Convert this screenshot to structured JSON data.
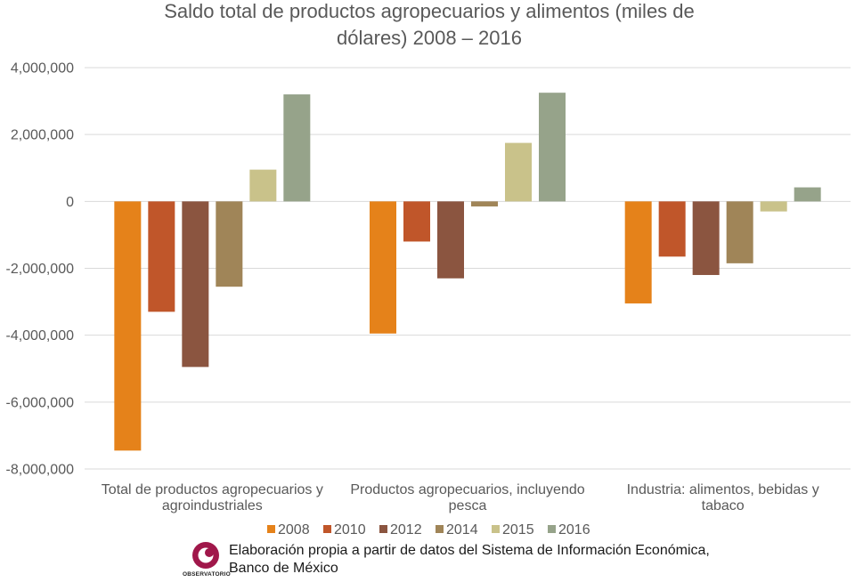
{
  "chart_data": {
    "type": "bar",
    "title": "Saldo total de productos agropecuarios y alimentos (miles de dólares) 2008 – 2016",
    "title_lines": [
      "Saldo total de productos agropecuarios y alimentos (miles de",
      "dólares) 2008 – 2016"
    ],
    "categories": [
      [
        "Total de productos agropecuarios y",
        "agroindustriales"
      ],
      [
        "Productos agropecuarios, incluyendo",
        "pesca"
      ],
      [
        "Industria: alimentos, bebidas y",
        "tabaco"
      ]
    ],
    "series": [
      {
        "name": "2008",
        "color": "#E5821A",
        "values": [
          -7450000,
          -3950000,
          -3050000
        ]
      },
      {
        "name": "2010",
        "color": "#C0562A",
        "values": [
          -3300000,
          -1200000,
          -1650000
        ]
      },
      {
        "name": "2012",
        "color": "#8B5540",
        "values": [
          -4950000,
          -2300000,
          -2200000
        ]
      },
      {
        "name": "2014",
        "color": "#A08558",
        "values": [
          -2550000,
          -150000,
          -1850000
        ]
      },
      {
        "name": "2015",
        "color": "#C9C28A",
        "values": [
          950000,
          1750000,
          -300000
        ]
      },
      {
        "name": "2016",
        "color": "#96A38A",
        "values": [
          3200000,
          3250000,
          420000
        ]
      }
    ],
    "yticks": [
      "4,000,000",
      "2,000,000",
      "0",
      "-2,000,000",
      "-4,000,000",
      "-6,000,000",
      "-8,000,000"
    ],
    "ytick_values": [
      4000000,
      2000000,
      0,
      -2000000,
      -4000000,
      -6000000,
      -8000000
    ],
    "ylim": [
      -8000000,
      4000000
    ],
    "grid": true,
    "legend_position": "bottom"
  },
  "footer": {
    "source_line1": "Elaboración propia a partir de datos del Sistema de Información Económica,",
    "source_line2": "Banco de México",
    "logo_text": "OBSERVATORIO",
    "logo_color": "#A0174A"
  }
}
